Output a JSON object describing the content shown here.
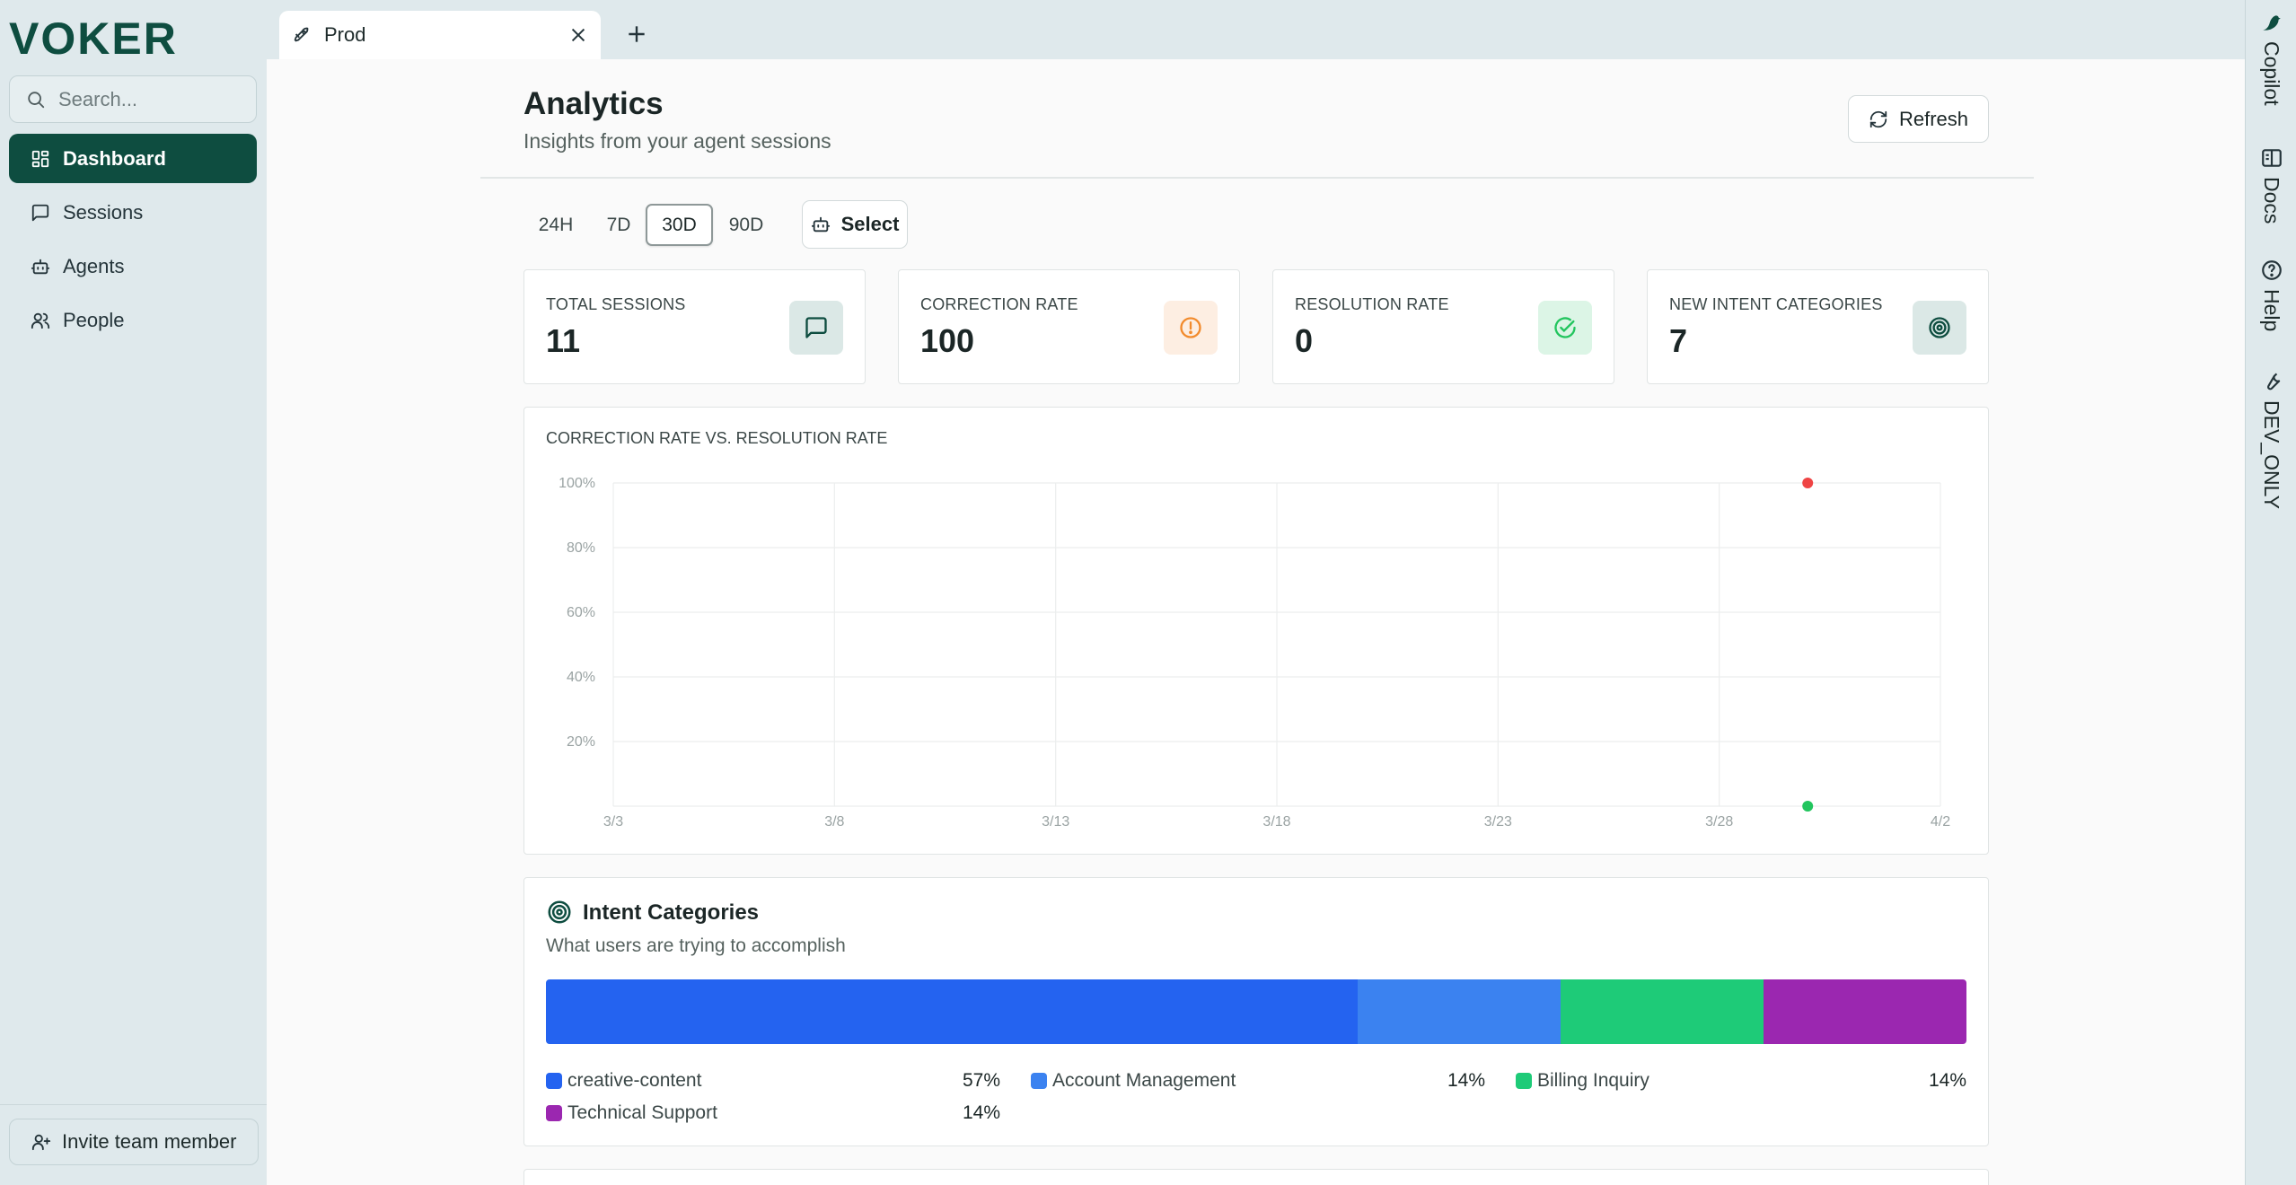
{
  "app": {
    "logo_text": "VOKER"
  },
  "tab": {
    "label": "Prod"
  },
  "search": {
    "placeholder": "Search..."
  },
  "sidebar": {
    "items": [
      {
        "label": "Dashboard",
        "active": true,
        "icon": "layout-grid-icon"
      },
      {
        "label": "Sessions",
        "active": false,
        "icon": "message-square-icon"
      },
      {
        "label": "Agents",
        "active": false,
        "icon": "bot-icon"
      },
      {
        "label": "People",
        "active": false,
        "icon": "users-icon"
      }
    ],
    "invite_label": "Invite team member"
  },
  "rail": {
    "copilot": "Copilot",
    "docs": "Docs",
    "help": "Help",
    "dev": "DEV_ONLY"
  },
  "header": {
    "title": "Analytics",
    "subtitle": "Insights from your agent sessions",
    "refresh_label": "Refresh"
  },
  "ranges": {
    "r24h": "24H",
    "r7d": "7D",
    "r30d": "30D",
    "r90d": "90D",
    "selected": "30D",
    "select_label": "Select"
  },
  "stats": [
    {
      "label": "TOTAL SESSIONS",
      "value": "11",
      "icon": "message-square-icon",
      "color": "#0e4d40"
    },
    {
      "label": "CORRECTION RATE",
      "value": "100",
      "icon": "alert-circle-icon",
      "color": "#f28b2d"
    },
    {
      "label": "RESOLUTION RATE",
      "value": "0",
      "icon": "check-circle-icon",
      "color": "#22c55e"
    },
    {
      "label": "NEW INTENT CATEGORIES",
      "value": "7",
      "icon": "target-icon",
      "color": "#0e4d40"
    }
  ],
  "chart_data": {
    "type": "scatter",
    "title": "CORRECTION RATE VS. RESOLUTION RATE",
    "x_ticks": [
      "3/3",
      "3/8",
      "3/13",
      "3/18",
      "3/23",
      "3/28",
      "4/2"
    ],
    "y_ticks": [
      "100%",
      "80%",
      "60%",
      "40%",
      "20%"
    ],
    "ylim": [
      0,
      100
    ],
    "xlim": [
      "3/3",
      "4/2"
    ],
    "grid": true,
    "series": [
      {
        "color": "#ef4444",
        "points": [
          {
            "x": "3/30",
            "y": 100
          }
        ]
      },
      {
        "color": "#22c55e",
        "points": [
          {
            "x": "3/30",
            "y": 0
          }
        ]
      }
    ]
  },
  "intent": {
    "title": "Intent Categories",
    "subtitle": "What users are trying to accomplish",
    "categories": [
      {
        "name": "creative-content",
        "pct_label": "57%",
        "share": 0.5714,
        "color": "#2463f0"
      },
      {
        "name": "Account Management",
        "pct_label": "14%",
        "share": 0.1429,
        "color": "#3b82f0"
      },
      {
        "name": "Billing Inquiry",
        "pct_label": "14%",
        "share": 0.1429,
        "color": "#1ecb78"
      },
      {
        "name": "Technical Support",
        "pct_label": "14%",
        "share": 0.1429,
        "color": "#9b27b0"
      }
    ]
  }
}
